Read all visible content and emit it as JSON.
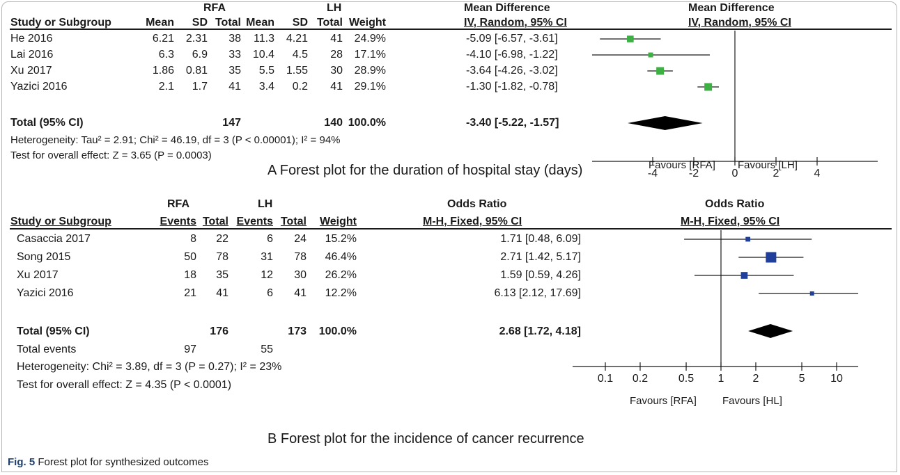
{
  "figure_caption": {
    "label": "Fig. 5",
    "text": "Forest plot for synthesized outcomes"
  },
  "chart_data": [
    {
      "type": "forest",
      "caption": "A Forest plot for the duration of hospital stay (days)",
      "group1": "RFA",
      "group2": "LH",
      "columns": [
        "Study or Subgroup",
        "Mean",
        "SD",
        "Total",
        "Mean",
        "SD",
        "Total",
        "Weight",
        "IV, Random, 95% CI"
      ],
      "effect_header": "Mean Difference",
      "plot_header": "Mean Difference",
      "plot_subheader": "IV, Random, 95% CI",
      "studies": [
        {
          "study": "He 2016",
          "mean1": "6.21",
          "sd1": "2.31",
          "n1": "38",
          "mean2": "11.3",
          "sd2": "4.21",
          "n2": "41",
          "weight": "24.9%",
          "ci_text": "-5.09 [-6.57, -3.61]",
          "est": -5.09,
          "lo": -6.57,
          "hi": -3.61
        },
        {
          "study": "Lai 2016",
          "mean1": "6.3",
          "sd1": "6.9",
          "n1": "33",
          "mean2": "10.4",
          "sd2": "4.5",
          "n2": "28",
          "weight": "17.1%",
          "ci_text": "-4.10 [-6.98, -1.22]",
          "est": -4.1,
          "lo": -6.98,
          "hi": -1.22
        },
        {
          "study": "Xu 2017",
          "mean1": "1.86",
          "sd1": "0.81",
          "n1": "35",
          "mean2": "5.5",
          "sd2": "1.55",
          "n2": "30",
          "weight": "28.9%",
          "ci_text": "-3.64 [-4.26, -3.02]",
          "est": -3.64,
          "lo": -4.26,
          "hi": -3.02
        },
        {
          "study": "Yazici 2016",
          "mean1": "2.1",
          "sd1": "1.7",
          "n1": "41",
          "mean2": "3.4",
          "sd2": "0.2",
          "n2": "41",
          "weight": "29.1%",
          "ci_text": "-1.30 [-1.82, -0.78]",
          "est": -1.3,
          "lo": -1.82,
          "hi": -0.78
        }
      ],
      "total": {
        "label": "Total (95% CI)",
        "n1": "147",
        "n2": "140",
        "weight": "100.0%",
        "ci_text": "-3.40 [-5.22, -1.57]",
        "est": -3.4,
        "lo": -5.22,
        "hi": -1.57
      },
      "heterogeneity": "Heterogeneity: Tau² = 2.91; Chi² = 46.19, df = 3 (P < 0.00001); I² = 94%",
      "overall_effect": "Test for overall effect: Z = 3.65 (P = 0.0003)",
      "axis": {
        "scale": "linear",
        "ticks": [
          -4,
          -2,
          0,
          2,
          4
        ],
        "tick_labels": [
          "-4",
          "-2",
          "0",
          "2",
          "4"
        ],
        "null_value": 0
      },
      "favours_left": "Favours [RFA]",
      "favours_right": "Favours [LH]",
      "marker_color": "#3cb043"
    },
    {
      "type": "forest",
      "caption": "B Forest plot for the incidence of cancer recurrence",
      "group1": "RFA",
      "group2": "LH",
      "columns": [
        "Study or Subgroup",
        "Events",
        "Total",
        "Events",
        "Total",
        "Weight",
        "M-H, Fixed, 95% CI"
      ],
      "effect_header": "Odds Ratio",
      "plot_header": "Odds Ratio",
      "plot_subheader": "M-H, Fixed, 95% CI",
      "studies": [
        {
          "study": "Casaccia 2017",
          "e1": "8",
          "n1": "22",
          "e2": "6",
          "n2": "24",
          "weight": "15.2%",
          "ci_text": "1.71 [0.48, 6.09]",
          "est": 1.71,
          "lo": 0.48,
          "hi": 6.09
        },
        {
          "study": "Song 2015",
          "e1": "50",
          "n1": "78",
          "e2": "31",
          "n2": "78",
          "weight": "46.4%",
          "ci_text": "2.71 [1.42, 5.17]",
          "est": 2.71,
          "lo": 1.42,
          "hi": 5.17
        },
        {
          "study": "Xu 2017",
          "e1": "18",
          "n1": "35",
          "e2": "12",
          "n2": "30",
          "weight": "26.2%",
          "ci_text": "1.59 [0.59, 4.26]",
          "est": 1.59,
          "lo": 0.59,
          "hi": 4.26
        },
        {
          "study": "Yazici 2016",
          "e1": "21",
          "n1": "41",
          "e2": "6",
          "n2": "41",
          "weight": "12.2%",
          "ci_text": "6.13 [2.12, 17.69]",
          "est": 6.13,
          "lo": 2.12,
          "hi": 17.69
        }
      ],
      "total": {
        "label": "Total (95% CI)",
        "n1": "176",
        "n2": "173",
        "weight": "100.0%",
        "ci_text": "2.68 [1.72, 4.18]",
        "est": 2.68,
        "lo": 1.72,
        "hi": 4.18
      },
      "total_events": {
        "label": "Total events",
        "e1": "97",
        "e2": "55"
      },
      "heterogeneity": "Heterogeneity: Chi² = 3.89, df = 3 (P = 0.27); I² = 23%",
      "overall_effect": "Test for overall effect: Z = 4.35 (P < 0.0001)",
      "axis": {
        "scale": "log",
        "ticks": [
          0.1,
          0.2,
          0.5,
          1,
          2,
          5,
          10
        ],
        "tick_labels": [
          "0.1",
          "0.2",
          "0.5",
          "1",
          "2",
          "5",
          "10"
        ],
        "null_value": 1
      },
      "favours_left": "Favours [RFA]",
      "favours_right": "Favours [HL]",
      "marker_color": "#1f3f9a"
    }
  ]
}
